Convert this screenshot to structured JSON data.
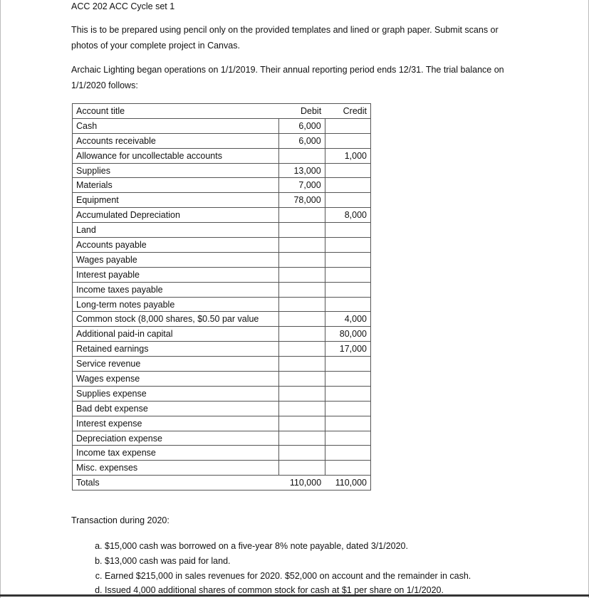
{
  "header": {
    "title": "ACC 202   ACC Cycle set 1"
  },
  "intro": "This is to be prepared using pencil only on the provided templates and lined or graph paper.  Submit scans or photos of your complete project in Canvas.",
  "setup": "Archaic Lighting began operations on 1/1/2019. Their annual reporting period ends 12/31. The trial balance on 1/1/2020 follows:",
  "trial_balance": {
    "headers": [
      "Account title",
      "Debit",
      "Credit"
    ],
    "rows": [
      {
        "account": "Cash",
        "debit": "6,000",
        "credit": ""
      },
      {
        "account": "Accounts receivable",
        "debit": "6,000",
        "credit": ""
      },
      {
        "account": "Allowance for uncollectable accounts",
        "debit": "",
        "credit": "1,000"
      },
      {
        "account": "Supplies",
        "debit": "13,000",
        "credit": ""
      },
      {
        "account": "Materials",
        "debit": "7,000",
        "credit": ""
      },
      {
        "account": "Equipment",
        "debit": "78,000",
        "credit": ""
      },
      {
        "account": "Accumulated Depreciation",
        "debit": "",
        "credit": "8,000"
      },
      {
        "account": "Land",
        "debit": "",
        "credit": ""
      },
      {
        "account": "Accounts payable",
        "debit": "",
        "credit": ""
      },
      {
        "account": "Wages payable",
        "debit": "",
        "credit": ""
      },
      {
        "account": "Interest payable",
        "debit": "",
        "credit": ""
      },
      {
        "account": "Income taxes payable",
        "debit": "",
        "credit": ""
      },
      {
        "account": "Long-term notes payable",
        "debit": "",
        "credit": ""
      },
      {
        "account": "Common stock (8,000 shares, $0.50 par value",
        "debit": "",
        "credit": "4,000"
      },
      {
        "account": "Additional paid-in capital",
        "debit": "",
        "credit": "80,000"
      },
      {
        "account": "Retained earnings",
        "debit": "",
        "credit": "17,000"
      },
      {
        "account": "Service revenue",
        "debit": "",
        "credit": ""
      },
      {
        "account": "Wages expense",
        "debit": "",
        "credit": ""
      },
      {
        "account": "Supplies expense",
        "debit": "",
        "credit": ""
      },
      {
        "account": "Bad debt expense",
        "debit": "",
        "credit": ""
      },
      {
        "account": "Interest expense",
        "debit": "",
        "credit": ""
      },
      {
        "account": "Depreciation expense",
        "debit": "",
        "credit": ""
      },
      {
        "account": "Income tax expense",
        "debit": "",
        "credit": ""
      },
      {
        "account": "Misc. expenses",
        "debit": "",
        "credit": ""
      }
    ],
    "totals": {
      "label": "Totals",
      "debit": "110,000",
      "credit": "110,000"
    }
  },
  "transactions": {
    "heading": "Transaction during 2020:",
    "items": [
      "$15,000 cash was borrowed on a five-year 8% note payable, dated 3/1/2020.",
      "$13,000 cash was paid for land.",
      "Earned $215,000 in sales revenues for 2020. $52,000 on account and the remainder in cash.",
      "Issued 4,000 additional shares of common stock for cash at $1 per share on 1/1/2020."
    ]
  }
}
